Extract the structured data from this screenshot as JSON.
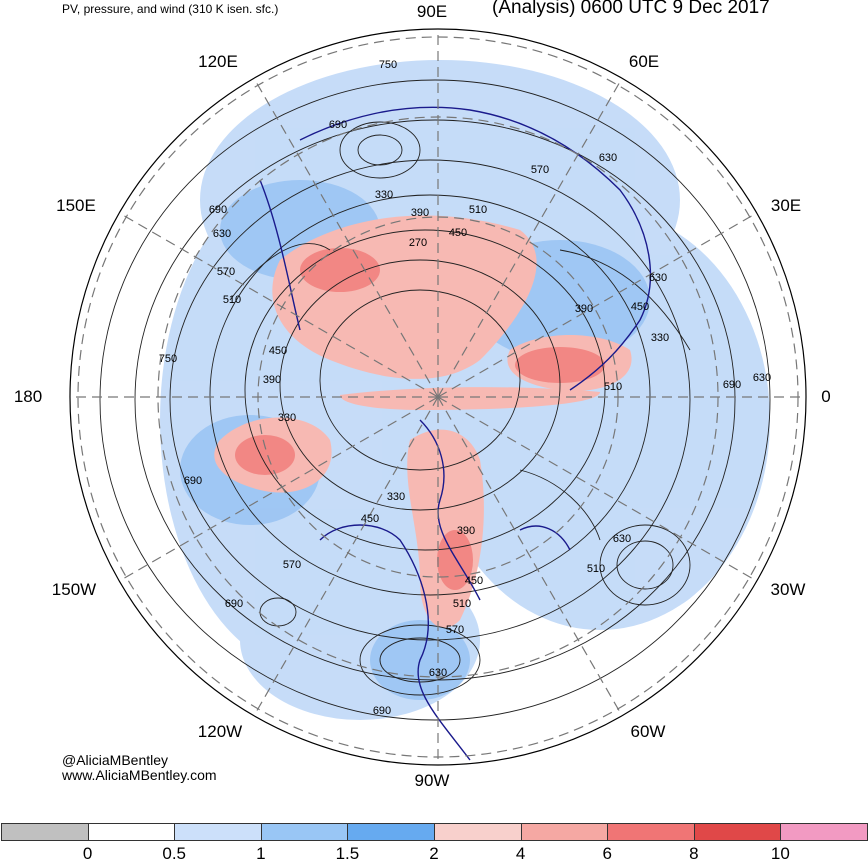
{
  "header": {
    "left_title": "PV, pressure, and wind (310 K isen. sfc.)",
    "right_title": "(Analysis) 0600 UTC 9 Dec 2017"
  },
  "longitude_labels": [
    "90E",
    "60E",
    "30E",
    "0",
    "30W",
    "60W",
    "90W",
    "120W",
    "150W",
    "180",
    "150E",
    "120E"
  ],
  "contour_labels": [
    "750",
    "690",
    "330",
    "390",
    "270",
    "450",
    "510",
    "570",
    "630",
    "690",
    "630",
    "570",
    "510",
    "750",
    "450",
    "390",
    "330",
    "630",
    "390",
    "450",
    "330",
    "510",
    "690",
    "630",
    "690",
    "570",
    "690",
    "630",
    "510",
    "450",
    "330",
    "390",
    "450",
    "510",
    "570",
    "630",
    "690"
  ],
  "credits": {
    "handle": "@AliciaMBentley",
    "website": "www.AliciaMBentley.com"
  },
  "colorbar": {
    "ticks": [
      "0",
      "0.5",
      "1",
      "1.5",
      "2",
      "4",
      "6",
      "8",
      "10"
    ],
    "colors": [
      "#c0c0c0",
      "#ffffff",
      "#cce0fa",
      "#99c6f5",
      "#66aaf0",
      "#f8d0cc",
      "#f5a8a3",
      "#f07575",
      "#e04848",
      "#f29ac2"
    ]
  },
  "colors": {
    "land_outline": "#1a1a8c",
    "contour": "#222222",
    "grid": "#777777"
  }
}
